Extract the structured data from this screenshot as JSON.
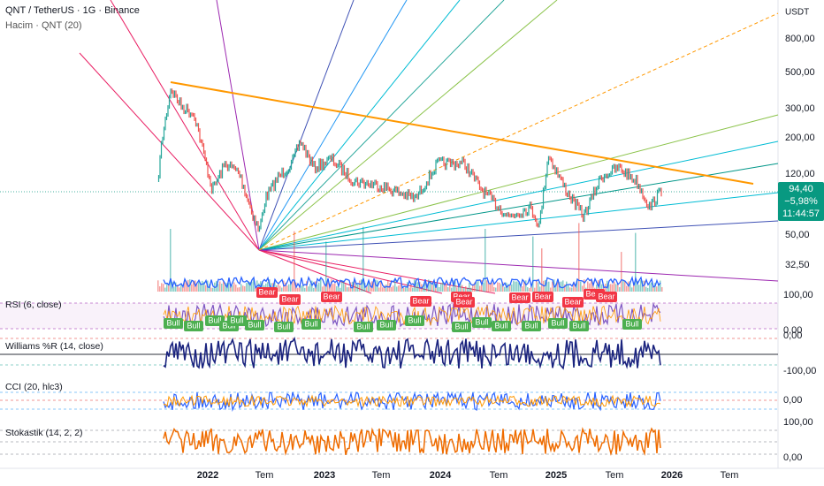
{
  "header": {
    "title": "QNT / TetherUS · 1G · Binance",
    "volume": "Hacim · QNT (20)"
  },
  "price_axis": {
    "currency": "USDT",
    "labels": [
      "800,00",
      "500,00",
      "300,00",
      "200,00",
      "120,00",
      "50,00",
      "32,50"
    ]
  },
  "price_tag": {
    "price": "94,40",
    "change": "−5,98%",
    "timer": "11:44:57"
  },
  "indicators": [
    {
      "label": "RSI (6, close)",
      "axis": [
        "100,00",
        "0,00"
      ]
    },
    {
      "label": "Williams %R (14, close)",
      "axis": [
        "0,00",
        "-100,00"
      ]
    },
    {
      "label": "CCI (20, hlc3)",
      "axis": [
        "0,00"
      ]
    },
    {
      "label": "Stokastik (14, 2, 2)",
      "axis": [
        "100,00",
        "0,00"
      ]
    }
  ],
  "time_axis": [
    "2022",
    "Tem",
    "2023",
    "Tem",
    "2024",
    "Tem",
    "2025",
    "Tem",
    "2026",
    "Tem"
  ],
  "signals": {
    "bear": [
      "Bear",
      "Bear",
      "Bear",
      "Bear",
      "Bear",
      "Bear",
      "Bear",
      "Bear",
      "Bear",
      "Bear",
      "Bear"
    ],
    "bull": [
      "Bull",
      "Bull",
      "Bull",
      "Bull",
      "Bull",
      "Bull",
      "Bull",
      "Bull",
      "Bull",
      "Bull",
      "Bull",
      "Bull",
      "Bull",
      "Bull",
      "Bull",
      "Bull",
      "Bull",
      "Bull"
    ]
  }
}
